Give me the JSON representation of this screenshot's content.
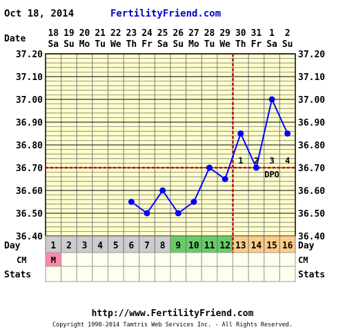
{
  "header": {
    "date_label": "Oct 18, 2014",
    "site_name": "FertilityFriend.com"
  },
  "footer": {
    "url": "http://www.FertilityFriend.com",
    "copyright": "Copyright 1998-2014 Tamtris Web Services Inc. - All Rights Reserved."
  },
  "colors": {
    "background": "#ffffcc",
    "grid": "#777777",
    "data_line": "#0000ff",
    "coverline": "#cc0000",
    "site_name": "#0000cc",
    "day_default": "#cccccc",
    "day_fertile": "#66cc66",
    "day_luteal": "#ffcc88",
    "cm_menses": "#ff88aa"
  },
  "chart_data": {
    "type": "line",
    "x_row_label": "Date",
    "dates": [
      "18",
      "19",
      "20",
      "21",
      "22",
      "23",
      "24",
      "25",
      "26",
      "27",
      "28",
      "29",
      "30",
      "31",
      "1",
      "2"
    ],
    "weekdays": [
      "Sa",
      "Su",
      "Mo",
      "Tu",
      "We",
      "Th",
      "Fr",
      "Sa",
      "Su",
      "Mo",
      "Tu",
      "We",
      "Th",
      "Fr",
      "Sa",
      "Su"
    ],
    "cycle_days": [
      "1",
      "2",
      "3",
      "4",
      "5",
      "6",
      "7",
      "8",
      "9",
      "10",
      "11",
      "12",
      "13",
      "14",
      "15",
      "16"
    ],
    "day_row_label": "Day",
    "day_phase": [
      "default",
      "default",
      "default",
      "default",
      "default",
      "default",
      "default",
      "default",
      "fertile",
      "fertile",
      "fertile",
      "fertile",
      "luteal",
      "luteal",
      "luteal",
      "luteal"
    ],
    "y_ticks": [
      "37.20",
      "37.10",
      "37.00",
      "36.90",
      "36.80",
      "36.70",
      "36.60",
      "36.50",
      "36.40"
    ],
    "ylim": [
      36.4,
      37.2
    ],
    "temperatures": [
      null,
      null,
      null,
      null,
      null,
      36.55,
      36.5,
      36.6,
      36.5,
      36.55,
      36.7,
      36.65,
      36.85,
      36.7,
      37.0,
      36.85
    ],
    "coverline": 36.7,
    "ovulation_day_index": 11,
    "dpo_labels": [
      {
        "day_index": 12,
        "text": "1"
      },
      {
        "day_index": 13,
        "text": "2"
      },
      {
        "day_index": 14,
        "text": "3"
      },
      {
        "day_index": 15,
        "text": "4"
      }
    ],
    "dpo_text": "DPO",
    "cm_row_label": "CM",
    "cm_values": [
      "M",
      "",
      "",
      "",
      "",
      "",
      "",
      "",
      "",
      "",
      "",
      "",
      "",
      "",
      "",
      ""
    ],
    "stats_row_label": "Stats"
  }
}
